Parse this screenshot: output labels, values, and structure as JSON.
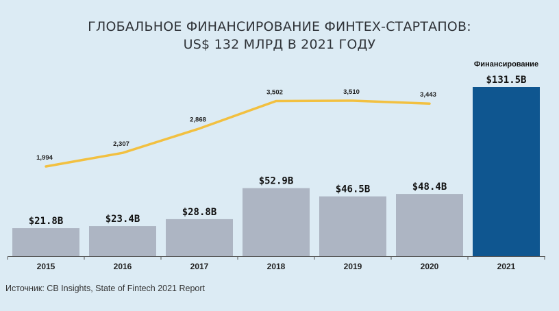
{
  "title_line1": "ГЛОБАЛЬНОЕ ФИНАНСИРОВАНИЕ ФИНТЕХ-СТАРТАПОВ:",
  "title_line2": "US$ 132 МЛРД В 2021 ГОДУ",
  "source": "Источник: CB Insights, State of Fintech 2021 Report",
  "colors": {
    "background": "#dcebf4",
    "bar": "#adb5c3",
    "bar_highlight": "#0f5690",
    "line": "#f2c040",
    "axis": "#555555"
  },
  "chart_data": {
    "type": "bar",
    "categories": [
      "2015",
      "2016",
      "2017",
      "2018",
      "2019",
      "2020",
      "2021"
    ],
    "series": [
      {
        "type": "bar",
        "values": [
          21.8,
          23.4,
          28.8,
          52.9,
          46.5,
          48.4,
          131.5
        ],
        "labels": [
          "$21.8B",
          "$23.4B",
          "$28.8B",
          "$52.9B",
          "$46.5B",
          "$48.4B",
          "$131.5B"
        ],
        "highlight_index": 6,
        "highlight_annotation": "Финансирование"
      },
      {
        "type": "line",
        "values": [
          1994,
          2307,
          2868,
          3502,
          3510,
          3443,
          null
        ],
        "labels": [
          "1,994",
          "2,307",
          "2,868",
          "3,502",
          "3,510",
          "3,443",
          ""
        ]
      }
    ],
    "xlabel": "",
    "ylabel": "",
    "grid": false,
    "legend": "none"
  }
}
